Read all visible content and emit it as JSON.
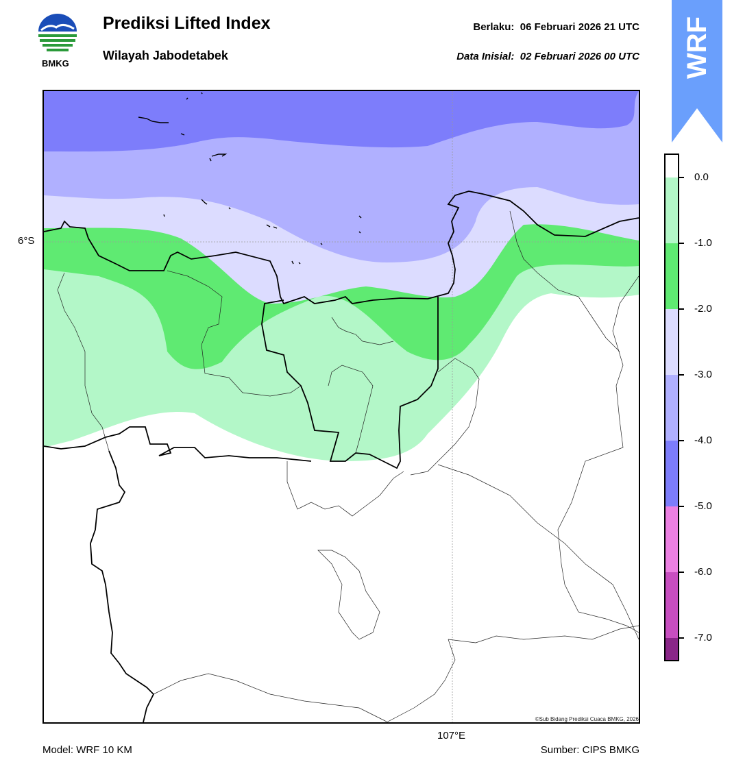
{
  "header": {
    "logo_text": "BMKG",
    "title": "Prediksi Lifted Index",
    "subtitle": "Wilayah Jabodetabek",
    "valid_label": "Berlaku:",
    "valid_time": "06 Februari 2026 21 UTC",
    "init_label": "Data Inisial:",
    "init_time": "02 Februari 2026 00 UTC"
  },
  "badge": {
    "text": "WRF",
    "color": "#6a9ffc"
  },
  "map": {
    "lat_label": "6°S",
    "lon_label": "107°E",
    "credit": "©Sub Bidang Prediksi Cuaca BMKG, 2026"
  },
  "footer": {
    "model": "Model: WRF 10 KM",
    "source": "Sumber: CIPS BMKG"
  },
  "legend": {
    "ticks": [
      "0.0",
      "-1.0",
      "-2.0",
      "-3.0",
      "-4.0",
      "-5.0",
      "-6.0",
      "-7.0"
    ],
    "colors": [
      {
        "range": "> 0",
        "color": "#ffffff"
      },
      {
        "range": "0 to -1",
        "color": "#b3f7c8"
      },
      {
        "range": "-1 to -2",
        "color": "#5fea72"
      },
      {
        "range": "-2 to -3",
        "color": "#dcdcff"
      },
      {
        "range": "-3 to -4",
        "color": "#b0b0ff"
      },
      {
        "range": "-4 to -5",
        "color": "#7d7dfb"
      },
      {
        "range": "-5 to -6",
        "color": "#ec80e2"
      },
      {
        "range": "-6 to -7",
        "color": "#c84ec0"
      },
      {
        "range": "< -7",
        "color": "#8a2688"
      }
    ]
  }
}
